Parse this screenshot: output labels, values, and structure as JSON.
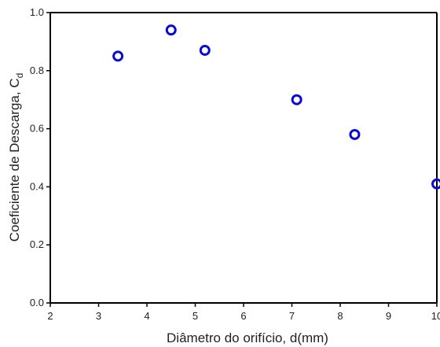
{
  "chart_data": {
    "type": "scatter",
    "title": "",
    "xlabel": "Diâmetro do orifício, d(mm)",
    "ylabel": "Coeficiente de Descarga, C",
    "ylabel_subscript": "d",
    "xlim": [
      2,
      10
    ],
    "ylim": [
      0.0,
      1.0
    ],
    "x_ticks": [
      "2",
      "3",
      "4",
      "5",
      "6",
      "7",
      "8",
      "9",
      "10"
    ],
    "y_ticks": [
      "0.0",
      "0.2",
      "0.4",
      "0.6",
      "0.8",
      "1.0"
    ],
    "grid": false,
    "marker": "open-circle",
    "marker_color": "#0a0ad6",
    "points": [
      {
        "x": 3.4,
        "y": 0.85
      },
      {
        "x": 4.5,
        "y": 0.94
      },
      {
        "x": 5.2,
        "y": 0.87
      },
      {
        "x": 7.1,
        "y": 0.7
      },
      {
        "x": 8.3,
        "y": 0.58
      },
      {
        "x": 10.0,
        "y": 0.41
      }
    ]
  }
}
